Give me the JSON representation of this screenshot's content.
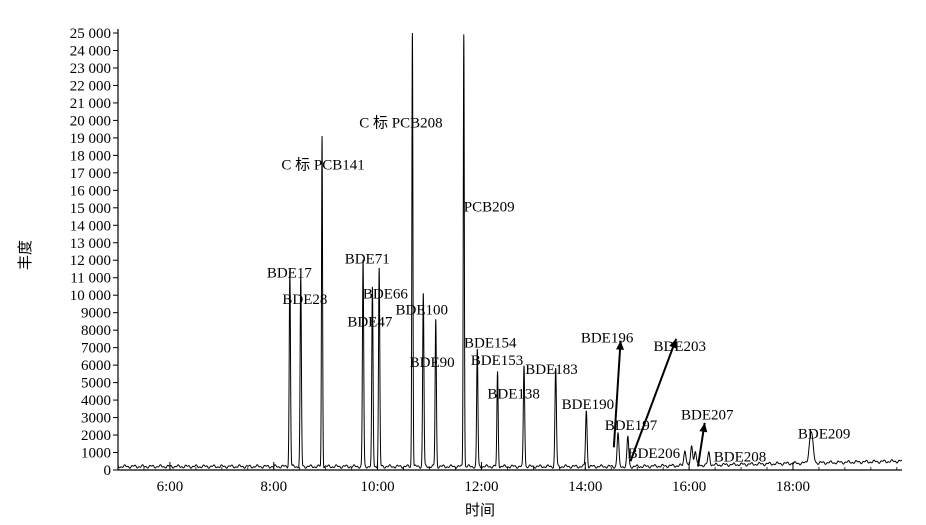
{
  "chart_data": {
    "type": "line",
    "xlabel": "时间",
    "ylabel": "丰度",
    "xlim": [
      5.0,
      20.1
    ],
    "ylim": [
      0,
      25000
    ],
    "x_ticks": [
      "6:00",
      "8:00",
      "10:00",
      "12:00",
      "14:00",
      "16:00",
      "18:00"
    ],
    "x_tick_values": [
      6,
      8,
      10,
      12,
      14,
      16,
      18
    ],
    "y_ticks": [
      "0",
      "1000",
      "2000",
      "3000",
      "4000",
      "5000",
      "6000",
      "7000",
      "8000",
      "9000",
      "10 000",
      "11 000",
      "12 000",
      "13 000",
      "14 000",
      "15 000",
      "16 000",
      "17 000",
      "18 000",
      "19 000",
      "20 000",
      "21 000",
      "22 000",
      "23 000",
      "24 000",
      "25 000"
    ],
    "y_tick_values": [
      0,
      1000,
      2000,
      3000,
      4000,
      5000,
      6000,
      7000,
      8000,
      9000,
      10000,
      11000,
      12000,
      13000,
      14000,
      15000,
      16000,
      17000,
      18000,
      19000,
      20000,
      21000,
      22000,
      23000,
      24000,
      25000
    ],
    "baseline": 200,
    "peaks": [
      {
        "t": 8.31,
        "h": 11200,
        "w": 0.012
      },
      {
        "t": 8.52,
        "h": 10800,
        "w": 0.012
      },
      {
        "t": 8.93,
        "h": 18900,
        "w": 0.01
      },
      {
        "t": 9.72,
        "h": 11800,
        "w": 0.012
      },
      {
        "t": 9.9,
        "h": 10200,
        "w": 0.012
      },
      {
        "t": 10.03,
        "h": 11300,
        "w": 0.012
      },
      {
        "t": 10.67,
        "h": 25000,
        "w": 0.01
      },
      {
        "t": 10.88,
        "h": 9900,
        "w": 0.012
      },
      {
        "t": 11.12,
        "h": 8400,
        "w": 0.012
      },
      {
        "t": 11.66,
        "h": 24800,
        "w": 0.01
      },
      {
        "t": 11.92,
        "h": 6700,
        "w": 0.012
      },
      {
        "t": 12.31,
        "h": 5400,
        "w": 0.012
      },
      {
        "t": 12.82,
        "h": 5800,
        "w": 0.013
      },
      {
        "t": 13.43,
        "h": 5600,
        "w": 0.014
      },
      {
        "t": 14.02,
        "h": 3200,
        "w": 0.015
      },
      {
        "t": 14.63,
        "h": 1900,
        "w": 0.017
      },
      {
        "t": 14.82,
        "h": 1700,
        "w": 0.017
      },
      {
        "t": 15.92,
        "h": 900,
        "w": 0.02
      },
      {
        "t": 16.05,
        "h": 1100,
        "w": 0.02
      },
      {
        "t": 16.12,
        "h": 800,
        "w": 0.02
      },
      {
        "t": 16.38,
        "h": 700,
        "w": 0.02
      },
      {
        "t": 18.35,
        "h": 1800,
        "w": 0.035
      }
    ],
    "annotations": [
      {
        "text": "BDE17",
        "t": 8.3,
        "y": 11000
      },
      {
        "text": "BDE28",
        "t": 8.6,
        "y": 9500
      },
      {
        "text": "C 标 PCB141",
        "t": 8.95,
        "y": 17200
      },
      {
        "text": "BDE71",
        "t": 9.8,
        "y": 11800
      },
      {
        "text": "BDE66",
        "t": 10.15,
        "y": 9800
      },
      {
        "text": "BDE47",
        "t": 9.85,
        "y": 8200
      },
      {
        "text": "C 标 PCB208",
        "t": 10.45,
        "y": 19600
      },
      {
        "text": "BDE100",
        "t": 10.85,
        "y": 8900
      },
      {
        "text": "BDE90",
        "t": 11.05,
        "y": 5900
      },
      {
        "text": "PCB209",
        "t": 12.15,
        "y": 14800
      },
      {
        "text": "BDE154",
        "t": 12.17,
        "y": 7000
      },
      {
        "text": "BDE153",
        "t": 12.3,
        "y": 6000
      },
      {
        "text": "BDE138",
        "t": 12.62,
        "y": 4100
      },
      {
        "text": "BDE183",
        "t": 13.35,
        "y": 5500
      },
      {
        "text": "BDE190",
        "t": 14.05,
        "y": 3500
      },
      {
        "text": "BDE196",
        "t": 14.42,
        "y": 7300
      },
      {
        "text": "BDE203",
        "t": 15.82,
        "y": 6800
      },
      {
        "text": "BDE197",
        "t": 14.88,
        "y": 2300
      },
      {
        "text": "BDE207",
        "t": 16.35,
        "y": 2900
      },
      {
        "text": "BDE206",
        "t": 15.32,
        "y": 700
      },
      {
        "text": "BDE208",
        "t": 16.98,
        "y": 500
      },
      {
        "text": "BDE209",
        "t": 18.6,
        "y": 1800
      }
    ],
    "arrows": [
      {
        "from": [
          14.55,
          1300
        ],
        "to": [
          14.68,
          7400
        ]
      },
      {
        "from": [
          14.87,
          500
        ],
        "to": [
          15.75,
          7500
        ]
      },
      {
        "from": [
          16.17,
          200
        ],
        "to": [
          16.3,
          2700
        ]
      }
    ]
  }
}
